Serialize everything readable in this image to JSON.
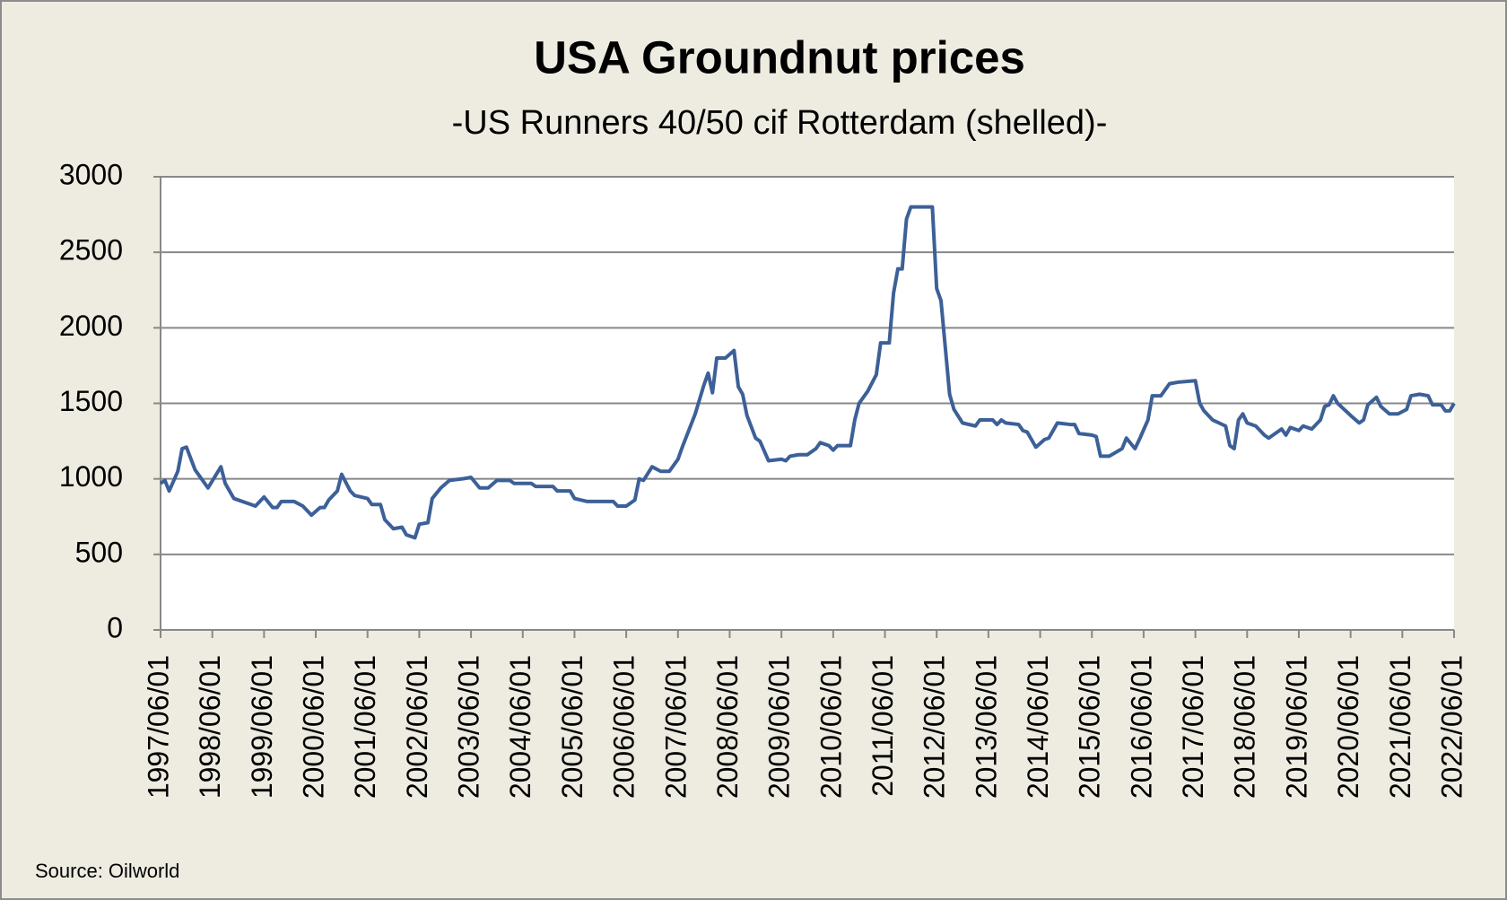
{
  "chart_data": {
    "type": "line",
    "title": "USA Groundnut prices",
    "subtitle": "-US Runners 40/50 cif Rotterdam (shelled)-",
    "source": "Source: Oilworld",
    "x": [
      "1997/06/01",
      "1997/07/01",
      "1997/08/01",
      "1997/10/01",
      "1997/11/01",
      "1997/12/01",
      "1998/02/01",
      "1998/05/01",
      "1998/08/01",
      "1998/09/01",
      "1998/11/01",
      "1999/03/01",
      "1999/04/01",
      "1999/06/01",
      "1999/08/01",
      "1999/09/01",
      "1999/10/01",
      "2000/01/01",
      "2000/03/01",
      "2000/05/01",
      "2000/07/01",
      "2000/08/01",
      "2000/09/01",
      "2000/11/01",
      "2000/12/01",
      "2001/02/01",
      "2001/03/01",
      "2001/06/01",
      "2001/07/01",
      "2001/09/01",
      "2001/10/01",
      "2001/12/01",
      "2002/02/01",
      "2002/03/01",
      "2002/05/01",
      "2002/06/01",
      "2002/08/01",
      "2002/09/01",
      "2002/11/01",
      "2003/01/01",
      "2003/04/01",
      "2003/06/01",
      "2003/08/01",
      "2003/10/01",
      "2003/12/01",
      "2004/03/01",
      "2004/04/01",
      "2004/08/01",
      "2004/09/01",
      "2005/01/01",
      "2005/02/01",
      "2005/05/01",
      "2005/06/01",
      "2005/09/01",
      "2006/03/01",
      "2006/04/01",
      "2006/06/01",
      "2006/08/01",
      "2006/09/01",
      "2006/10/01",
      "2006/12/01",
      "2007/02/01",
      "2007/04/01",
      "2007/06/01",
      "2007/07/01",
      "2007/10/01",
      "2007/12/01",
      "2008/01/01",
      "2008/02/01",
      "2008/03/01",
      "2008/05/01",
      "2008/07/01",
      "2008/08/01",
      "2008/09/01",
      "2008/10/01",
      "2008/12/01",
      "2009/01/01",
      "2009/03/01",
      "2009/06/01",
      "2009/07/01",
      "2009/08/01",
      "2009/10/01",
      "2009/12/01",
      "2010/02/01",
      "2010/03/01",
      "2010/05/01",
      "2010/06/01",
      "2010/07/01",
      "2010/10/01",
      "2010/11/01",
      "2010/12/01",
      "2011/02/01",
      "2011/04/01",
      "2011/05/01",
      "2011/07/01",
      "2011/08/01",
      "2011/09/01",
      "2011/10/01",
      "2011/11/01",
      "2011/12/01",
      "2012/05/01",
      "2012/06/01",
      "2012/07/01",
      "2012/09/01",
      "2012/10/01",
      "2012/12/01",
      "2013/03/01",
      "2013/04/01",
      "2013/07/01",
      "2013/08/01",
      "2013/09/01",
      "2013/10/01",
      "2014/01/01",
      "2014/02/01",
      "2014/03/01",
      "2014/05/01",
      "2014/07/01",
      "2014/08/01",
      "2014/10/01",
      "2015/01/01",
      "2015/02/01",
      "2015/03/01",
      "2015/06/01",
      "2015/07/01",
      "2015/08/01",
      "2015/10/01",
      "2016/01/01",
      "2016/02/01",
      "2016/04/01",
      "2016/05/01",
      "2016/07/01",
      "2016/08/01",
      "2016/10/01",
      "2016/12/01",
      "2017/02/01",
      "2017/06/01",
      "2017/07/01",
      "2017/08/01",
      "2017/10/01",
      "2018/01/01",
      "2018/02/01",
      "2018/03/01",
      "2018/04/01",
      "2018/05/01",
      "2018/06/01",
      "2018/08/01",
      "2018/10/01",
      "2018/11/01",
      "2019/02/01",
      "2019/03/01",
      "2019/04/01",
      "2019/06/01",
      "2019/07/01",
      "2019/09/01",
      "2019/11/01",
      "2019/12/01",
      "2020/01/01",
      "2020/02/01",
      "2020/03/01",
      "2020/06/01",
      "2020/08/01",
      "2020/09/01",
      "2020/10/01",
      "2020/12/01",
      "2021/01/01",
      "2021/03/01",
      "2021/05/01",
      "2021/07/01",
      "2021/08/01",
      "2021/10/01",
      "2021/12/01",
      "2022/01/01",
      "2022/03/01",
      "2022/04/01",
      "2022/05/01",
      "2022/06/01"
    ],
    "series": [
      {
        "name": "USA Groundnut prices",
        "color": "#3c6097",
        "values": [
          970,
          990,
          920,
          1050,
          1200,
          1210,
          1060,
          940,
          1080,
          970,
          870,
          830,
          820,
          880,
          810,
          810,
          850,
          850,
          820,
          760,
          810,
          810,
          860,
          920,
          1030,
          920,
          890,
          870,
          830,
          830,
          730,
          670,
          680,
          630,
          610,
          700,
          710,
          870,
          940,
          990,
          1000,
          1010,
          940,
          940,
          990,
          990,
          970,
          970,
          950,
          950,
          920,
          920,
          870,
          850,
          850,
          820,
          820,
          860,
          1000,
          990,
          1080,
          1050,
          1050,
          1130,
          1210,
          1430,
          1620,
          1700,
          1570,
          1800,
          1800,
          1850,
          1610,
          1560,
          1420,
          1270,
          1250,
          1120,
          1130,
          1120,
          1150,
          1160,
          1160,
          1200,
          1240,
          1220,
          1190,
          1220,
          1220,
          1390,
          1500,
          1580,
          1690,
          1900,
          1900,
          2230,
          2390,
          2390,
          2720,
          2800,
          2800,
          2260,
          2180,
          1560,
          1460,
          1370,
          1350,
          1390,
          1390,
          1360,
          1390,
          1370,
          1360,
          1320,
          1310,
          1210,
          1260,
          1270,
          1370,
          1360,
          1360,
          1300,
          1290,
          1280,
          1150,
          1150,
          1200,
          1270,
          1200,
          1260,
          1390,
          1550,
          1550,
          1630,
          1640,
          1650,
          1500,
          1450,
          1390,
          1350,
          1220,
          1200,
          1390,
          1430,
          1370,
          1350,
          1290,
          1270,
          1330,
          1290,
          1340,
          1320,
          1350,
          1330,
          1390,
          1480,
          1490,
          1550,
          1500,
          1420,
          1370,
          1390,
          1490,
          1540,
          1480,
          1430,
          1430,
          1460,
          1550,
          1560,
          1550,
          1490,
          1490,
          1450,
          1450,
          1500
        ]
      }
    ],
    "xlim": [
      "1997/06/01",
      "2022/06/01"
    ],
    "xticks": [
      "1997/06/01",
      "1998/06/01",
      "1999/06/01",
      "2000/06/01",
      "2001/06/01",
      "2002/06/01",
      "2003/06/01",
      "2004/06/01",
      "2005/06/01",
      "2006/06/01",
      "2007/06/01",
      "2008/06/01",
      "2009/06/01",
      "2010/06/01",
      "2011/06/01",
      "2012/06/01",
      "2013/06/01",
      "2014/06/01",
      "2015/06/01",
      "2016/06/01",
      "2017/06/01",
      "2018/06/01",
      "2019/06/01",
      "2020/06/01",
      "2021/06/01",
      "2022/06/01"
    ],
    "ylim": [
      0,
      3000
    ],
    "yticks": [
      0,
      500,
      1000,
      1500,
      2000,
      2500,
      3000
    ],
    "grid": true
  }
}
